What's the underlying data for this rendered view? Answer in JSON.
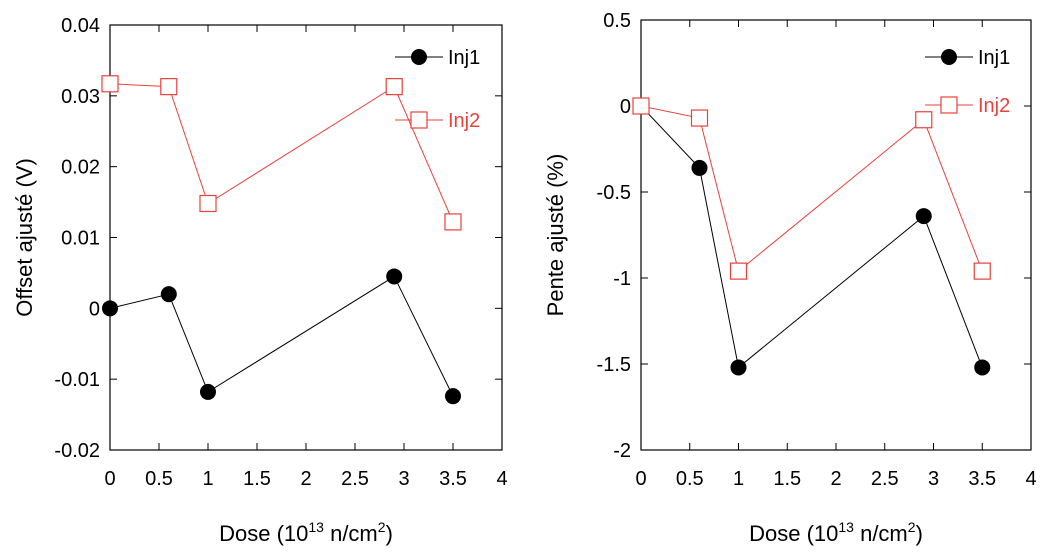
{
  "chart_data": [
    {
      "type": "line",
      "xlabel": {
        "main": "Dose (10",
        "sup1": "13",
        "mid": " n/cm",
        "sup2": "2",
        "end": ")"
      },
      "ylabel": "Offset ajusté (V)",
      "xlim": [
        0,
        4
      ],
      "ylim": [
        -0.02,
        0.04
      ],
      "x_ticks": [
        "0",
        "0.5",
        "1",
        "1.5",
        "2",
        "2.5",
        "3",
        "3.5",
        "4"
      ],
      "x_tick_values": [
        0,
        0.5,
        1,
        1.5,
        2,
        2.5,
        3,
        3.5,
        4
      ],
      "y_ticks": [
        "-0.02",
        "-0.01",
        "0",
        "0.01",
        "0.02",
        "0.03",
        "0.04"
      ],
      "y_tick_values": [
        -0.02,
        -0.01,
        0,
        0.01,
        0.02,
        0.03,
        0.04
      ],
      "legend_position": "top-right",
      "series": [
        {
          "name": "Inj1",
          "marker": "filled-circle",
          "color": "#000000",
          "x": [
            0,
            0.6,
            1,
            2.9,
            3.5
          ],
          "y": [
            0.0,
            0.002,
            -0.0118,
            0.0045,
            -0.0124
          ]
        },
        {
          "name": "Inj2",
          "marker": "open-square",
          "color": "#e8413c",
          "x": [
            0,
            0.6,
            1,
            2.9,
            3.5
          ],
          "y": [
            0.0317,
            0.0313,
            0.0148,
            0.0313,
            0.0122
          ]
        }
      ]
    },
    {
      "type": "line",
      "xlabel": {
        "main": "Dose (10",
        "sup1": "13",
        "mid": " n/cm",
        "sup2": "2",
        "end": ")"
      },
      "ylabel": "Pente ajusté (%)",
      "xlim": [
        0,
        4
      ],
      "ylim": [
        -2,
        0.5
      ],
      "x_ticks": [
        "0",
        "0.5",
        "1",
        "1.5",
        "2",
        "2.5",
        "3",
        "3.5",
        "4"
      ],
      "x_tick_values": [
        0,
        0.5,
        1,
        1.5,
        2,
        2.5,
        3,
        3.5,
        4
      ],
      "y_ticks": [
        "-2",
        "-1.5",
        "-1",
        "-0.5",
        "0",
        "0.5"
      ],
      "y_tick_values": [
        -2,
        -1.5,
        -1,
        -0.5,
        0,
        0.5
      ],
      "legend_position": "top-right",
      "series": [
        {
          "name": "Inj1",
          "marker": "filled-circle",
          "color": "#000000",
          "x": [
            0,
            0.6,
            1,
            2.9,
            3.5
          ],
          "y": [
            0.0,
            -0.36,
            -1.52,
            -0.64,
            -1.52
          ]
        },
        {
          "name": "Inj2",
          "marker": "open-square",
          "color": "#e8413c",
          "x": [
            0,
            0.6,
            1,
            2.9,
            3.5
          ],
          "y": [
            0.0,
            -0.07,
            -0.96,
            -0.08,
            -0.96
          ]
        }
      ]
    }
  ]
}
